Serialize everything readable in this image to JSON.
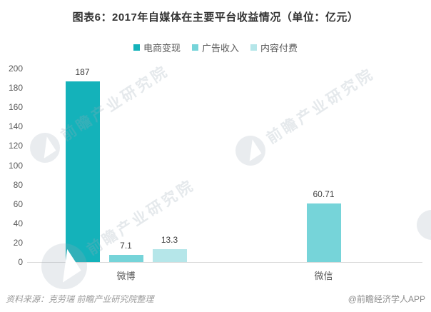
{
  "title": "图表6：2017年自媒体在主要平台收益情况（单位：亿元）",
  "chart_data": {
    "type": "bar",
    "title": "图表6：2017年自媒体在主要平台收益情况（单位：亿元）",
    "unit": "亿元",
    "categories": [
      "微博",
      "微信"
    ],
    "series": [
      {
        "name": "电商变现",
        "color": "#14b2ba",
        "values": [
          187,
          null
        ]
      },
      {
        "name": "广告收入",
        "color": "#76d4d9",
        "values": [
          7.1,
          60.71
        ]
      },
      {
        "name": "内容付费",
        "color": "#b5e6e9",
        "values": [
          13.3,
          null
        ]
      }
    ],
    "ylim": [
      0,
      200
    ],
    "ytick_step": 20,
    "grid": false,
    "legend_position": "top",
    "value_label_format": "plain"
  },
  "footer": {
    "source": "资料来源：克劳瑞  前瞻产业研究院整理",
    "credit": "@前瞻经济学人APP"
  },
  "watermark": {
    "text": "前瞻产业研究院"
  },
  "colors": {
    "axis_line": "#d9d9d9",
    "tick_label": "#595959",
    "value_label": "#404040",
    "title": "#333333"
  }
}
